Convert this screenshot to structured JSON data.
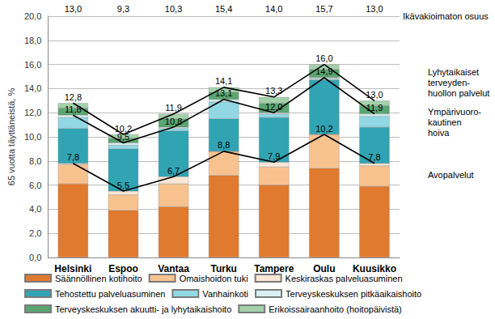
{
  "chart_data": {
    "type": "bar",
    "stacked": true,
    "grid": true,
    "legend": "bottom",
    "y_label": "65 vuotta täyttäneistä, %",
    "categories": [
      "Helsinki",
      "Espoo",
      "Vantaa",
      "Turku",
      "Tampere",
      "Oulu",
      "Kuusikko"
    ],
    "ylim": [
      0,
      20
    ],
    "yticks": [
      {
        "value": 0,
        "label": "0,0"
      },
      {
        "value": 2,
        "label": "2,0"
      },
      {
        "value": 4,
        "label": "4,0"
      },
      {
        "value": 6,
        "label": "6,0"
      },
      {
        "value": 8,
        "label": "8,0"
      },
      {
        "value": 10,
        "label": "10,0"
      },
      {
        "value": 12,
        "label": "12,0"
      },
      {
        "value": 14,
        "label": "14,0"
      },
      {
        "value": 16,
        "label": "16,0"
      },
      {
        "value": 18,
        "label": "18,0"
      },
      {
        "value": 20,
        "label": "20,0"
      }
    ],
    "unadjusted_share": {
      "title": "Ikävakioimaton osuus",
      "values": [
        13.0,
        9.3,
        10.3,
        15.4,
        14.0,
        15.7,
        13.0
      ],
      "value_labels": [
        "13,0",
        "9,3",
        "10,3",
        "15,4",
        "14,0",
        "15,7",
        "13,0"
      ]
    },
    "series": [
      {
        "name": "Säännöllinen kotihoito",
        "type": "bar",
        "color": "#e07a2f",
        "values": [
          6.1,
          3.9,
          4.2,
          6.8,
          6.0,
          7.4,
          5.9
        ]
      },
      {
        "name": "Omaishoidon tuki",
        "type": "bar",
        "color": "#f8c28f",
        "values": [
          1.6,
          1.3,
          1.9,
          2.0,
          1.5,
          2.8,
          1.7
        ]
      },
      {
        "name": "Keskiraskas palveluasuminen",
        "type": "bar",
        "color": "#fde6d4",
        "values": [
          0.1,
          0.3,
          0.6,
          0.0,
          0.4,
          0.0,
          0.2
        ]
      },
      {
        "name": "Tehostettu palveluasuminen",
        "type": "bar",
        "color": "#31a4b4",
        "values": [
          2.9,
          3.5,
          3.8,
          2.7,
          3.7,
          4.5,
          3.0
        ]
      },
      {
        "name": "Vanhainkoti",
        "type": "bar",
        "color": "#91d8e4",
        "values": [
          0.9,
          0.3,
          0.2,
          1.4,
          0.3,
          0.1,
          0.9
        ]
      },
      {
        "name": "Terveyskeskuksen pitkäaikaishoito",
        "type": "bar",
        "color": "#d8f0f4",
        "values": [
          0.2,
          0.2,
          0.1,
          0.2,
          0.1,
          0.1,
          0.2
        ]
      },
      {
        "name": "Terveyskeskuksen akuutti- ja lyhytaikaishoito",
        "type": "bar",
        "color": "#5aa571",
        "values": [
          0.6,
          0.4,
          0.7,
          0.6,
          0.8,
          0.7,
          0.7
        ]
      },
      {
        "name": "Erikoissairaanhoito (hoitopäivistä)",
        "type": "bar",
        "color": "#a3d1ab",
        "values": [
          0.4,
          0.3,
          0.4,
          0.4,
          0.5,
          0.4,
          0.4
        ]
      },
      {
        "name": "Avopalvelut",
        "type": "line",
        "color": "#000000",
        "data_labels": true,
        "values": [
          7.8,
          5.5,
          6.7,
          8.8,
          7.9,
          10.2,
          7.8
        ],
        "value_labels": [
          "7,8",
          "5,5",
          "6,7",
          "8,8",
          "7,9",
          "10,2",
          "7,8"
        ]
      },
      {
        "name": "Ympärivuoro-\nkautinen\nhoiva",
        "type": "line",
        "color": "#000000",
        "data_labels": true,
        "values": [
          11.8,
          9.5,
          10.8,
          13.1,
          12.0,
          14.9,
          11.9
        ],
        "value_labels": [
          "11,8",
          "9,5",
          "10,8",
          "13,1",
          "12,0",
          "14,9",
          "11,9"
        ]
      },
      {
        "name": "Lyhytaikaiset\nterveyden-\nhuollon palvelut",
        "type": "line",
        "color": "#000000",
        "data_labels": true,
        "values": [
          12.8,
          10.2,
          11.9,
          14.1,
          13.3,
          16.0,
          13.0
        ],
        "value_labels": [
          "12,8",
          "10,2",
          "11,9",
          "14,1",
          "13,3",
          "16,0",
          "13,0"
        ]
      }
    ]
  }
}
